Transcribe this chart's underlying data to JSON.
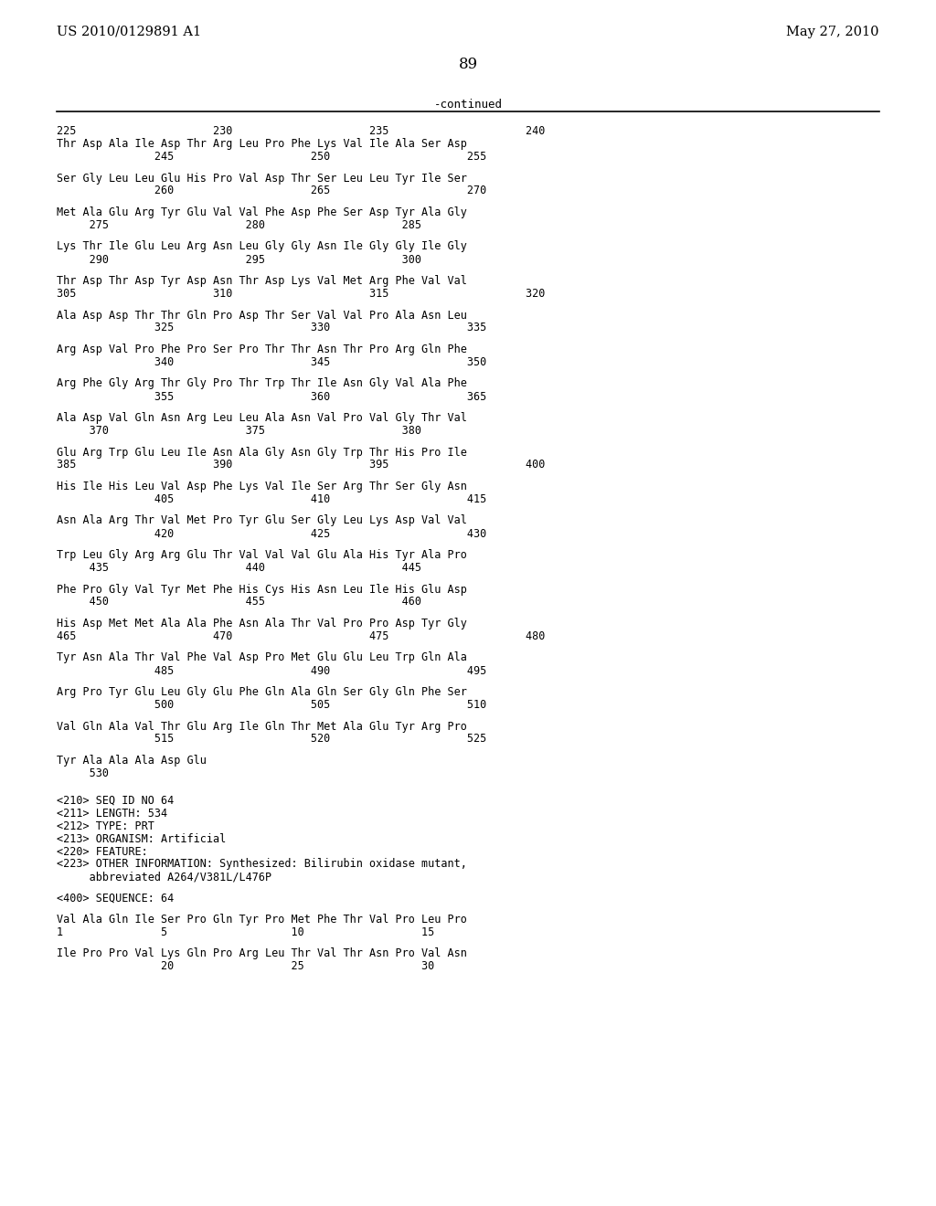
{
  "header_left": "US 2010/0129891 A1",
  "header_right": "May 27, 2010",
  "page_number": "89",
  "continued_label": "-continued",
  "background_color": "#ffffff",
  "text_color": "#000000",
  "metadata_line1": "<210> SEQ ID NO 64",
  "metadata_line2": "<211> LENGTH: 534",
  "metadata_line3": "<212> TYPE: PRT",
  "metadata_line4": "<213> ORGANISM: Artificial",
  "metadata_line5": "<220> FEATURE:",
  "metadata_line6": "<223> OTHER INFORMATION: Synthesized: Bilirubin oxidase mutant,",
  "metadata_line6b": "     abbreviated A264/V381L/L476P",
  "metadata_line7": "<400> SEQUENCE: 64",
  "seq64_aa": "Val Ala Gln Ile Ser Pro Gln Tyr Pro Met Phe Thr Val Pro Leu Pro",
  "seq64_num": "1               5                   10                  15",
  "seq64_aa2": "Ile Pro Pro Val Lys Gln Pro Arg Leu Thr Val Thr Asn Pro Val Asn",
  "seq64_num2": "                20                  25                  30",
  "blocks": [
    [
      "225                     230                     235                     240",
      "Thr Asp Ala Ile Asp Thr Arg Leu Pro Phe Lys Val Ile Ala Ser Asp",
      "               245                     250                     255"
    ],
    [
      "Ser Gly Leu Leu Glu His Pro Val Asp Thr Ser Leu Leu Tyr Ile Ser",
      "               260                     265                     270"
    ],
    [
      "Met Ala Glu Arg Tyr Glu Val Val Phe Asp Phe Ser Asp Tyr Ala Gly",
      "     275                     280                     285"
    ],
    [
      "Lys Thr Ile Glu Leu Arg Asn Leu Gly Gly Asn Ile Gly Gly Ile Gly",
      "     290                     295                     300"
    ],
    [
      "Thr Asp Thr Asp Tyr Asp Asn Thr Asp Lys Val Met Arg Phe Val Val",
      "305                     310                     315                     320"
    ],
    [
      "Ala Asp Asp Thr Thr Gln Pro Asp Thr Ser Val Val Pro Ala Asn Leu",
      "               325                     330                     335"
    ],
    [
      "Arg Asp Val Pro Phe Pro Ser Pro Thr Thr Asn Thr Pro Arg Gln Phe",
      "               340                     345                     350"
    ],
    [
      "Arg Phe Gly Arg Thr Gly Pro Thr Trp Thr Ile Asn Gly Val Ala Phe",
      "               355                     360                     365"
    ],
    [
      "Ala Asp Val Gln Asn Arg Leu Leu Ala Asn Val Pro Val Gly Thr Val",
      "     370                     375                     380"
    ],
    [
      "Glu Arg Trp Glu Leu Ile Asn Ala Gly Asn Gly Trp Thr His Pro Ile",
      "385                     390                     395                     400"
    ],
    [
      "His Ile His Leu Val Asp Phe Lys Val Ile Ser Arg Thr Ser Gly Asn",
      "               405                     410                     415"
    ],
    [
      "Asn Ala Arg Thr Val Met Pro Tyr Glu Ser Gly Leu Lys Asp Val Val",
      "               420                     425                     430"
    ],
    [
      "Trp Leu Gly Arg Arg Glu Thr Val Val Val Glu Ala His Tyr Ala Pro",
      "     435                     440                     445"
    ],
    [
      "Phe Pro Gly Val Tyr Met Phe His Cys His Asn Leu Ile His Glu Asp",
      "     450                     455                     460"
    ],
    [
      "His Asp Met Met Ala Ala Phe Asn Ala Thr Val Pro Pro Asp Tyr Gly",
      "465                     470                     475                     480"
    ],
    [
      "Tyr Asn Ala Thr Val Phe Val Asp Pro Met Glu Glu Leu Trp Gln Ala",
      "               485                     490                     495"
    ],
    [
      "Arg Pro Tyr Glu Leu Gly Glu Phe Gln Ala Gln Ser Gly Gln Phe Ser",
      "               500                     505                     510"
    ],
    [
      "Val Gln Ala Val Thr Glu Arg Ile Gln Thr Met Ala Glu Tyr Arg Pro",
      "               515                     520                     525"
    ],
    [
      "Tyr Ala Ala Ala Asp Glu",
      "     530"
    ]
  ]
}
